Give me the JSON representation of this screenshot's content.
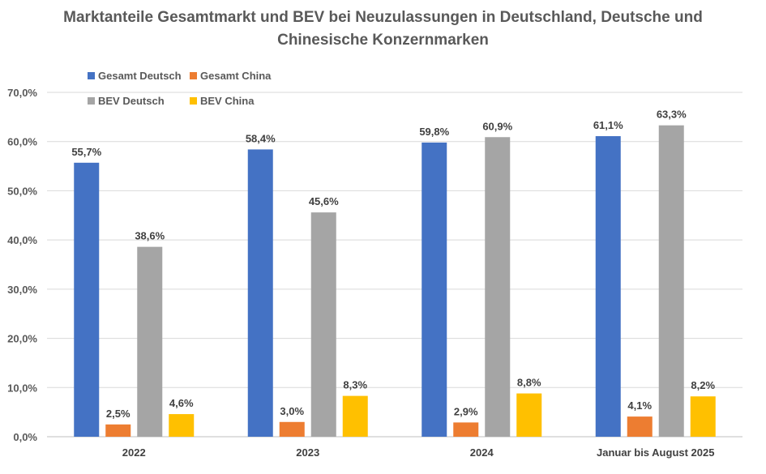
{
  "chart_data": {
    "type": "bar",
    "title_lines": [
      "Marktanteile Gesamtmarkt und BEV bei Neuzulassungen in Deutschland, Deutsche und",
      "Chinesische Konzernmarken"
    ],
    "categories": [
      "2022",
      "2023",
      "2024",
      "Januar bis August 2025"
    ],
    "series": [
      {
        "name": "Gesamt Deutsch",
        "color": "#4472C4",
        "values": [
          55.7,
          58.4,
          59.8,
          61.1
        ],
        "labels": [
          "55,7%",
          "58,4%",
          "59,8%",
          "61,1%"
        ]
      },
      {
        "name": "Gesamt China",
        "color": "#ED7D31",
        "values": [
          2.5,
          3.0,
          2.9,
          4.1
        ],
        "labels": [
          "2,5%",
          "3,0%",
          "2,9%",
          "4,1%"
        ]
      },
      {
        "name": "BEV Deutsch",
        "color": "#A5A5A5",
        "values": [
          38.6,
          45.6,
          60.9,
          63.3
        ],
        "labels": [
          "38,6%",
          "45,6%",
          "60,9%",
          "63,3%"
        ]
      },
      {
        "name": "BEV China",
        "color": "#FFC000",
        "values": [
          4.6,
          8.3,
          8.8,
          8.2
        ],
        "labels": [
          "4,6%",
          "8,3%",
          "8,8%",
          "8,2%"
        ]
      }
    ],
    "ylim": [
      0,
      70
    ],
    "yticks": [
      0,
      10,
      20,
      30,
      40,
      50,
      60,
      70
    ],
    "ytick_labels": [
      "0,0%",
      "10,0%",
      "20,0%",
      "30,0%",
      "40,0%",
      "50,0%",
      "60,0%",
      "70,0%"
    ],
    "xlabel": "",
    "ylabel": "",
    "grid": true,
    "legend_position": "top-left"
  }
}
